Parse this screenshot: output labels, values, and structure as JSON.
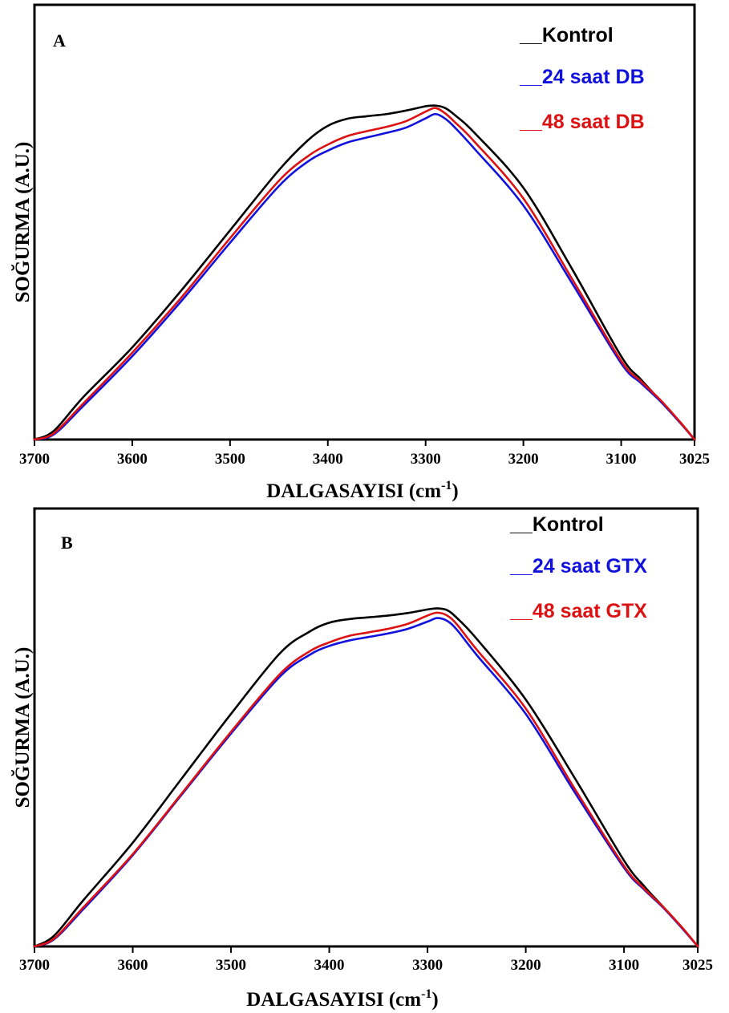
{
  "figure": {
    "x_ticks": [
      3700,
      3600,
      3500,
      3400,
      3300,
      3200,
      3100,
      3025
    ],
    "y_range": [
      0,
      1
    ]
  },
  "panels": [
    {
      "panel_label": "A",
      "xlabel": "DALGASAYISI",
      "xlabel_unit": "(cm",
      "xlabel_sup": "-1",
      "xlabel_close": ")",
      "ylabel": "SOĞURMA (A.U.)",
      "legend_prefix": "__",
      "legend": [
        {
          "text": "Kontrol",
          "color": "#000000"
        },
        {
          "text": "24 saat DB",
          "color": "#1111dd"
        },
        {
          "text": "48 saat DB",
          "color": "#dd1111"
        }
      ]
    },
    {
      "panel_label": "B",
      "xlabel": "DALGASAYISI",
      "xlabel_unit": "(cm",
      "xlabel_sup": "-1",
      "xlabel_close": ")",
      "ylabel": "SOĞURMA (A.U.)",
      "legend_prefix": "__",
      "legend": [
        {
          "text": "Kontrol",
          "color": "#000000"
        },
        {
          "text": "24 saat GTX",
          "color": "#1111dd"
        },
        {
          "text": "48 saat GTX",
          "color": "#dd1111"
        }
      ]
    }
  ],
  "chart_data": [
    {
      "type": "line",
      "x_reversed": true,
      "xlim": [
        3700,
        3025
      ],
      "ylim": [
        0,
        1
      ],
      "x": [
        3700,
        3680,
        3650,
        3600,
        3550,
        3500,
        3450,
        3420,
        3400,
        3380,
        3360,
        3340,
        3320,
        3300,
        3290,
        3280,
        3270,
        3250,
        3200,
        3150,
        3100,
        3080,
        3060,
        3040,
        3025
      ],
      "series": [
        {
          "name": "Kontrol",
          "color": "#000000",
          "values": [
            0.0,
            0.025,
            0.12,
            0.26,
            0.42,
            0.59,
            0.76,
            0.845,
            0.885,
            0.905,
            0.912,
            0.918,
            0.928,
            0.94,
            0.942,
            0.935,
            0.915,
            0.865,
            0.71,
            0.48,
            0.235,
            0.17,
            0.11,
            0.05,
            0.0
          ]
        },
        {
          "name": "24 saat DB",
          "color": "#1111dd",
          "values": [
            0.0,
            0.015,
            0.095,
            0.235,
            0.39,
            0.555,
            0.715,
            0.785,
            0.815,
            0.838,
            0.852,
            0.865,
            0.88,
            0.906,
            0.918,
            0.905,
            0.88,
            0.82,
            0.66,
            0.44,
            0.215,
            0.16,
            0.108,
            0.048,
            0.0
          ]
        },
        {
          "name": "48 saat DB",
          "color": "#dd1111",
          "values": [
            0.0,
            0.018,
            0.102,
            0.245,
            0.4,
            0.568,
            0.73,
            0.8,
            0.832,
            0.856,
            0.87,
            0.882,
            0.898,
            0.925,
            0.935,
            0.92,
            0.895,
            0.84,
            0.68,
            0.452,
            0.222,
            0.165,
            0.112,
            0.05,
            0.0
          ]
        }
      ]
    },
    {
      "type": "line",
      "x_reversed": true,
      "xlim": [
        3700,
        3025
      ],
      "ylim": [
        0,
        1
      ],
      "x": [
        3700,
        3680,
        3650,
        3600,
        3550,
        3500,
        3450,
        3420,
        3400,
        3380,
        3360,
        3340,
        3320,
        3300,
        3290,
        3280,
        3270,
        3250,
        3200,
        3150,
        3100,
        3080,
        3060,
        3040,
        3025
      ],
      "series": [
        {
          "name": "Kontrol",
          "color": "#000000",
          "values": [
            0.0,
            0.03,
            0.13,
            0.29,
            0.47,
            0.65,
            0.82,
            0.88,
            0.905,
            0.915,
            0.92,
            0.925,
            0.932,
            0.942,
            0.945,
            0.94,
            0.918,
            0.86,
            0.69,
            0.47,
            0.24,
            0.17,
            0.11,
            0.05,
            0.0
          ]
        },
        {
          "name": "24 saat GTX",
          "color": "#1111dd",
          "values": [
            0.0,
            0.02,
            0.105,
            0.255,
            0.425,
            0.595,
            0.755,
            0.815,
            0.84,
            0.855,
            0.865,
            0.875,
            0.888,
            0.908,
            0.918,
            0.91,
            0.885,
            0.815,
            0.65,
            0.43,
            0.22,
            0.16,
            0.108,
            0.048,
            0.0
          ]
        },
        {
          "name": "48 saat GTX",
          "color": "#dd1111",
          "values": [
            0.0,
            0.022,
            0.11,
            0.258,
            0.428,
            0.6,
            0.762,
            0.825,
            0.85,
            0.868,
            0.878,
            0.888,
            0.902,
            0.925,
            0.933,
            0.925,
            0.9,
            0.83,
            0.665,
            0.44,
            0.225,
            0.163,
            0.11,
            0.05,
            0.0
          ]
        }
      ]
    }
  ]
}
